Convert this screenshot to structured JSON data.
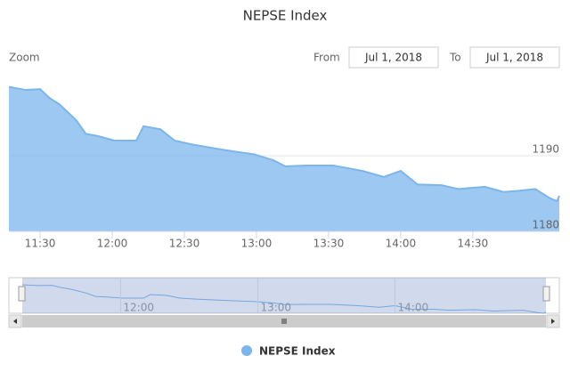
{
  "chart_data": {
    "type": "area",
    "title": "NEPSE Index",
    "zoom_label": "Zoom",
    "from_label": "From",
    "from_date": "Jul 1, 2018",
    "to_label": "To",
    "to_date": "Jul 1, 2018",
    "x": [
      677,
      684,
      690,
      694,
      698,
      701,
      705,
      709,
      714,
      721,
      730,
      733,
      740,
      746,
      753,
      764,
      772,
      779,
      787,
      792,
      801,
      812,
      824,
      833,
      840,
      847,
      857,
      864,
      875,
      883,
      890,
      896,
      902,
      905,
      906
    ],
    "series": [
      {
        "name": "NEPSE Index",
        "color": "#7cb5ec",
        "values": [
          1199.1,
          1198.7,
          1198.8,
          1197.6,
          1196.8,
          1195.9,
          1194.7,
          1192.9,
          1192.6,
          1192.0,
          1192.0,
          1193.9,
          1193.5,
          1192.0,
          1191.5,
          1190.9,
          1190.5,
          1190.2,
          1189.4,
          1188.6,
          1188.7,
          1188.7,
          1188.0,
          1187.2,
          1188.0,
          1186.2,
          1186.1,
          1185.6,
          1185.9,
          1185.2,
          1185.4,
          1185.6,
          1184.4,
          1184.0,
          1184.7
        ]
      }
    ],
    "xlim": [
      677,
      906
    ],
    "xticks": [
      {
        "value": 690,
        "label": "11:30"
      },
      {
        "value": 720,
        "label": "12:00"
      },
      {
        "value": 750,
        "label": "12:30"
      },
      {
        "value": 780,
        "label": "13:00"
      },
      {
        "value": 810,
        "label": "13:30"
      },
      {
        "value": 840,
        "label": "14:00"
      },
      {
        "value": 870,
        "label": "14:30"
      }
    ],
    "ylim": [
      1180,
      1200
    ],
    "yticks": [
      1180,
      1190
    ],
    "grid": true,
    "navigator_xticks": [
      {
        "value": 720,
        "label": "12:00"
      },
      {
        "value": 780,
        "label": "13:00"
      },
      {
        "value": 840,
        "label": "14:00"
      }
    ]
  }
}
